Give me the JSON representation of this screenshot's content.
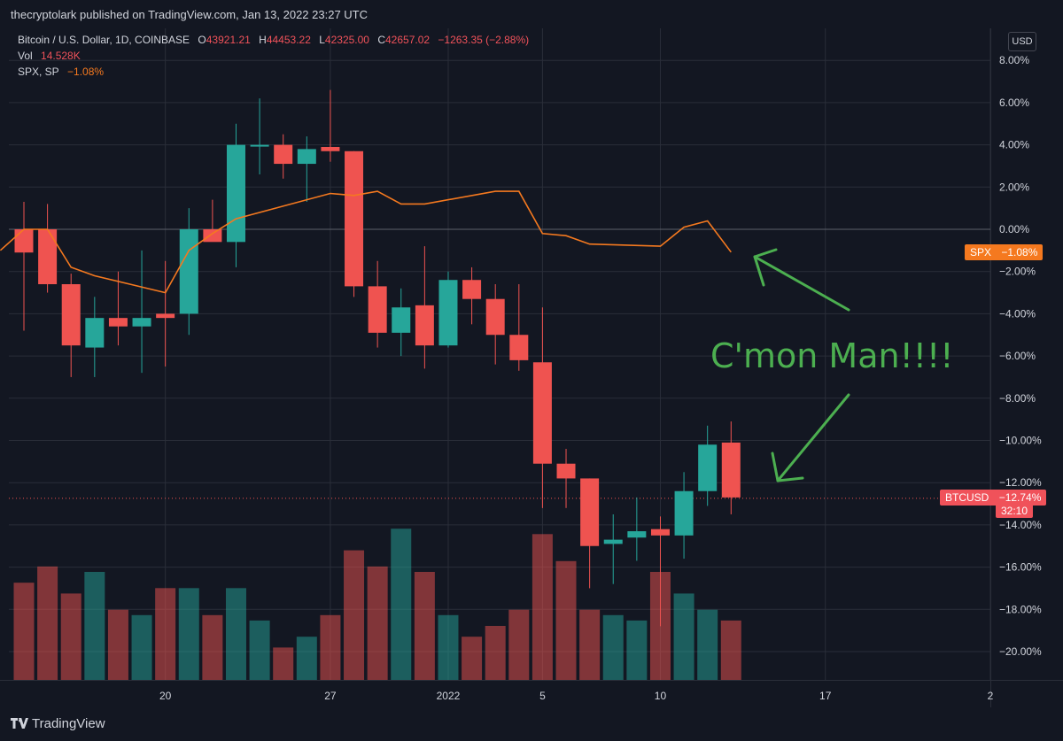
{
  "header": {
    "publisher": "thecryptolark published on TradingView.com, Jan 13, 2022 23:27 UTC"
  },
  "legend": {
    "symbol": "Bitcoin / U.S. Dollar, 1D, COINBASE",
    "open_label": "O",
    "open": "43921.21",
    "high_label": "H",
    "high": "44453.22",
    "low_label": "L",
    "low": "42325.00",
    "close_label": "C",
    "close": "42657.02",
    "change": "−1263.35 (−2.88%)",
    "vol_label": "Vol",
    "vol_value": "14.528K",
    "spx_label": "SPX, SP",
    "spx_value": "−1.08%"
  },
  "currency_badge": "USD",
  "tags": {
    "spx_name": "SPX",
    "spx_value": "−1.08%",
    "btc_name": "BTCUSD",
    "btc_value": "−12.74%",
    "btc_countdown": "32:10"
  },
  "annotation": {
    "text": "C'mon Man!!!!"
  },
  "footer": {
    "brand": "TradingView"
  },
  "colors": {
    "up": "#26a69a",
    "down": "#ef5350",
    "spx": "#f5791f",
    "annotation": "#4caf50",
    "background": "#131722",
    "grid": "#2a2e39"
  },
  "chart_data": {
    "type": "candlestick",
    "y_unit": "%",
    "ylim": [
      -21.5,
      9
    ],
    "y_ticks": [
      "8.00%",
      "6.00%",
      "4.00%",
      "2.00%",
      "0.00%",
      "−2.00%",
      "−4.00%",
      "−6.00%",
      "−8.00%",
      "−10.00%",
      "−12.00%",
      "−14.00%",
      "−16.00%",
      "−18.00%",
      "−20.00%"
    ],
    "y_tick_values": [
      8,
      6,
      4,
      2,
      0,
      -2,
      -4,
      -6,
      -8,
      -10,
      -12,
      -14,
      -16,
      -18,
      -20
    ],
    "x_ticks": [
      "20",
      "27",
      "2022",
      "5",
      "10",
      "17",
      "2"
    ],
    "x_tick_dates": [
      "2021-12-20",
      "2021-12-27",
      "2022-01-01",
      "2022-01-05",
      "2022-01-10",
      "2022-01-17",
      "2022-01-24"
    ],
    "x_range": [
      "2021-12-14",
      "2022-01-24"
    ],
    "grid": true,
    "candles": [
      {
        "date": "2021-12-14",
        "open": 0.0,
        "high": 1.3,
        "low": -4.8,
        "close": -1.1
      },
      {
        "date": "2021-12-15",
        "open": 0.0,
        "high": 1.2,
        "low": -3.0,
        "close": -2.6
      },
      {
        "date": "2021-12-16",
        "open": -2.6,
        "high": -2.1,
        "low": -7.0,
        "close": -5.5
      },
      {
        "date": "2021-12-17",
        "open": -5.6,
        "high": -3.2,
        "low": -7.0,
        "close": -4.2
      },
      {
        "date": "2021-12-18",
        "open": -4.2,
        "high": -2.0,
        "low": -5.5,
        "close": -4.6
      },
      {
        "date": "2021-12-19",
        "open": -4.6,
        "high": -1.0,
        "low": -6.8,
        "close": -4.2
      },
      {
        "date": "2021-12-20",
        "open": -4.0,
        "high": -1.5,
        "low": -6.5,
        "close": -4.2
      },
      {
        "date": "2021-12-21",
        "open": -4.0,
        "high": 1.0,
        "low": -5.0,
        "close": 0.0
      },
      {
        "date": "2021-12-22",
        "open": 0.0,
        "high": 1.4,
        "low": -0.5,
        "close": -0.6
      },
      {
        "date": "2021-12-23",
        "open": -0.6,
        "high": 5.0,
        "low": -1.8,
        "close": 4.0
      },
      {
        "date": "2021-12-24",
        "open": 4.0,
        "high": 6.2,
        "low": 2.6,
        "close": 4.0
      },
      {
        "date": "2021-12-25",
        "open": 4.0,
        "high": 4.5,
        "low": 2.4,
        "close": 3.1
      },
      {
        "date": "2021-12-26",
        "open": 3.1,
        "high": 4.4,
        "low": 1.3,
        "close": 3.8
      },
      {
        "date": "2021-12-27",
        "open": 3.9,
        "high": 6.6,
        "low": 3.2,
        "close": 3.7
      },
      {
        "date": "2021-12-28",
        "open": 3.7,
        "high": 3.7,
        "low": -3.2,
        "close": -2.7
      },
      {
        "date": "2021-12-29",
        "open": -2.7,
        "high": -1.5,
        "low": -5.6,
        "close": -4.9
      },
      {
        "date": "2021-12-30",
        "open": -4.9,
        "high": -2.8,
        "low": -6.0,
        "close": -3.7
      },
      {
        "date": "2021-12-31",
        "open": -3.6,
        "high": -0.8,
        "low": -6.6,
        "close": -5.5
      },
      {
        "date": "2022-01-01",
        "open": -5.5,
        "high": -2.0,
        "low": -5.6,
        "close": -2.4
      },
      {
        "date": "2022-01-02",
        "open": -2.4,
        "high": -1.8,
        "low": -4.5,
        "close": -3.3
      },
      {
        "date": "2022-01-03",
        "open": -3.3,
        "high": -2.6,
        "low": -6.4,
        "close": -5.0
      },
      {
        "date": "2022-01-04",
        "open": -5.0,
        "high": -2.6,
        "low": -6.7,
        "close": -6.2
      },
      {
        "date": "2022-01-05",
        "open": -6.3,
        "high": -3.7,
        "low": -13.2,
        "close": -11.1
      },
      {
        "date": "2022-01-06",
        "open": -11.1,
        "high": -10.4,
        "low": -13.2,
        "close": -11.8
      },
      {
        "date": "2022-01-07",
        "open": -11.8,
        "high": -11.8,
        "low": -17.0,
        "close": -15.0
      },
      {
        "date": "2022-01-08",
        "open": -14.9,
        "high": -13.5,
        "low": -16.8,
        "close": -14.7
      },
      {
        "date": "2022-01-09",
        "open": -14.6,
        "high": -12.7,
        "low": -15.7,
        "close": -14.3
      },
      {
        "date": "2022-01-10",
        "open": -14.2,
        "high": -13.6,
        "low": -18.8,
        "close": -14.5
      },
      {
        "date": "2022-01-11",
        "open": -14.5,
        "high": -11.5,
        "low": -15.6,
        "close": -12.4
      },
      {
        "date": "2022-01-12",
        "open": -12.4,
        "high": -9.3,
        "low": -13.1,
        "close": -10.2
      },
      {
        "date": "2022-01-13",
        "open": -10.1,
        "high": -9.1,
        "low": -13.5,
        "close": -12.7
      }
    ],
    "volume": [
      18,
      21,
      16,
      20,
      13,
      12,
      17,
      17,
      12,
      17,
      11,
      6,
      8,
      12,
      24,
      21,
      28,
      20,
      12,
      8,
      10,
      13,
      27,
      22,
      13,
      12,
      11,
      20,
      16,
      13,
      11
    ],
    "spx": [
      {
        "date": "2021-12-13",
        "value": -1.0
      },
      {
        "date": "2021-12-14",
        "value": 0.0
      },
      {
        "date": "2021-12-15",
        "value": 0.0
      },
      {
        "date": "2021-12-16",
        "value": -1.8
      },
      {
        "date": "2021-12-17",
        "value": -2.2
      },
      {
        "date": "2021-12-20",
        "value": -3.0
      },
      {
        "date": "2021-12-21",
        "value": -1.0
      },
      {
        "date": "2021-12-22",
        "value": -0.2
      },
      {
        "date": "2021-12-23",
        "value": 0.5
      },
      {
        "date": "2021-12-27",
        "value": 1.7
      },
      {
        "date": "2021-12-28",
        "value": 1.6
      },
      {
        "date": "2021-12-29",
        "value": 1.8
      },
      {
        "date": "2021-12-30",
        "value": 1.2
      },
      {
        "date": "2021-12-31",
        "value": 1.2
      },
      {
        "date": "2022-01-03",
        "value": 1.8
      },
      {
        "date": "2022-01-04",
        "value": 1.8
      },
      {
        "date": "2022-01-05",
        "value": -0.2
      },
      {
        "date": "2022-01-06",
        "value": -0.3
      },
      {
        "date": "2022-01-07",
        "value": -0.7
      },
      {
        "date": "2022-01-10",
        "value": -0.8
      },
      {
        "date": "2022-01-11",
        "value": 0.1
      },
      {
        "date": "2022-01-12",
        "value": 0.4
      },
      {
        "date": "2022-01-13",
        "value": -1.08
      }
    ],
    "reference_lines": [
      0.0,
      -12.74
    ]
  }
}
